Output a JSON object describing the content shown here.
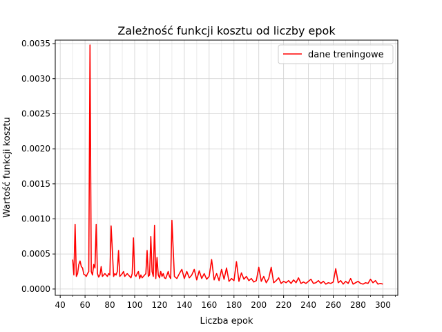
{
  "chart_data": {
    "type": "line",
    "title": "Zależność funkcji kosztu od liczby epok",
    "xlabel": "Liczba epok",
    "ylabel": "Wartość funkcji kosztu",
    "xlim": [
      36,
      312
    ],
    "ylim": [
      -9e-05,
      0.00355
    ],
    "xticks": [
      40,
      60,
      80,
      100,
      120,
      140,
      160,
      180,
      200,
      220,
      240,
      260,
      280,
      300
    ],
    "xtick_labels": [
      "40",
      "60",
      "80",
      "100",
      "120",
      "140",
      "160",
      "180",
      "200",
      "220",
      "240",
      "260",
      "280",
      "300"
    ],
    "yticks": [
      0.0,
      0.0005,
      0.001,
      0.0015,
      0.002,
      0.0025,
      0.003,
      0.0035
    ],
    "ytick_labels": [
      "0.0000",
      "0.0005",
      "0.0010",
      "0.0015",
      "0.0020",
      "0.0025",
      "0.0030",
      "0.0035"
    ],
    "grid": true,
    "legend": {
      "position": "top-right",
      "entries": [
        "dane treningowe"
      ]
    },
    "series": [
      {
        "name": "dane treningowe",
        "color": "#ff0000",
        "x": [
          50,
          51,
          52,
          53,
          54,
          55,
          56,
          57,
          58,
          59,
          60,
          61,
          62,
          63,
          64,
          65,
          66,
          67,
          68,
          69,
          70,
          71,
          72,
          73,
          74,
          75,
          76,
          77,
          78,
          79,
          80,
          81,
          82,
          83,
          84,
          85,
          86,
          87,
          88,
          89,
          90,
          91,
          92,
          93,
          94,
          95,
          96,
          97,
          98,
          99,
          100,
          101,
          102,
          103,
          104,
          105,
          106,
          107,
          108,
          109,
          110,
          111,
          112,
          113,
          114,
          115,
          116,
          117,
          118,
          119,
          120,
          121,
          122,
          123,
          124,
          125,
          126,
          127,
          128,
          129,
          130,
          132,
          134,
          136,
          138,
          140,
          142,
          144,
          146,
          148,
          150,
          152,
          154,
          156,
          158,
          160,
          162,
          164,
          166,
          168,
          170,
          172,
          174,
          176,
          178,
          180,
          182,
          184,
          186,
          188,
          190,
          192,
          194,
          196,
          198,
          200,
          202,
          204,
          206,
          208,
          210,
          212,
          214,
          216,
          218,
          220,
          222,
          224,
          226,
          228,
          230,
          232,
          234,
          236,
          238,
          240,
          242,
          244,
          246,
          248,
          250,
          252,
          254,
          256,
          258,
          260,
          262,
          264,
          266,
          268,
          270,
          272,
          274,
          276,
          278,
          280,
          282,
          284,
          286,
          288,
          290,
          292,
          294,
          296,
          298,
          300
        ],
        "y": [
          0.00042,
          0.0002,
          0.00092,
          0.00018,
          0.00022,
          0.00035,
          0.0004,
          0.00032,
          0.0003,
          0.00021,
          0.0002,
          0.00018,
          0.00022,
          0.00025,
          0.00348,
          0.00025,
          0.0002,
          0.00035,
          0.0003,
          0.00092,
          0.00022,
          0.00017,
          0.0002,
          0.00032,
          0.00018,
          0.0002,
          0.00022,
          0.0002,
          0.00018,
          0.00022,
          0.0002,
          0.0009,
          0.00055,
          0.00018,
          0.00022,
          0.0002,
          0.00025,
          0.00055,
          0.00018,
          0.0002,
          0.00022,
          0.00025,
          0.00018,
          0.0002,
          0.00022,
          0.0002,
          0.00018,
          0.00016,
          0.00022,
          0.00073,
          0.0002,
          0.00018,
          0.00022,
          0.00025,
          0.00015,
          0.0002,
          0.00016,
          0.00018,
          0.0002,
          0.00022,
          0.00055,
          0.00018,
          0.0002,
          0.00075,
          0.00025,
          0.00018,
          0.00091,
          0.00015,
          0.00045,
          0.0002,
          0.00016,
          0.00025,
          0.00018,
          0.00022,
          0.00016,
          0.00015,
          0.0002,
          0.00025,
          0.00018,
          0.00015,
          0.00098,
          0.00018,
          0.00015,
          0.00022,
          0.00028,
          0.00015,
          0.00025,
          0.00016,
          0.0002,
          0.00028,
          0.00013,
          0.00026,
          0.00015,
          0.00022,
          0.00014,
          0.00018,
          0.00042,
          0.00013,
          0.00022,
          0.00012,
          0.00028,
          0.00014,
          0.0003,
          0.00011,
          0.00015,
          0.00012,
          0.00039,
          0.00011,
          0.00023,
          0.00014,
          0.00018,
          0.00012,
          0.00015,
          0.0001,
          0.00012,
          0.00031,
          0.00011,
          0.00018,
          9e-05,
          0.00015,
          0.00031,
          9e-05,
          0.00012,
          0.00016,
          8e-05,
          0.00011,
          9e-05,
          0.00012,
          8e-05,
          0.00013,
          9e-05,
          0.00016,
          8e-05,
          0.0001,
          8e-05,
          0.00011,
          0.00014,
          8e-05,
          9e-05,
          0.00012,
          8e-05,
          0.00011,
          7e-05,
          9e-05,
          8e-05,
          0.0001,
          0.00029,
          9e-05,
          0.00012,
          7e-05,
          0.00011,
          8e-05,
          0.00015,
          7e-05,
          9e-05,
          0.00011,
          8e-05,
          7e-05,
          9e-05,
          8e-05,
          0.00014,
          9e-05,
          0.00012,
          7e-05,
          8e-05,
          7e-05
        ]
      }
    ]
  }
}
